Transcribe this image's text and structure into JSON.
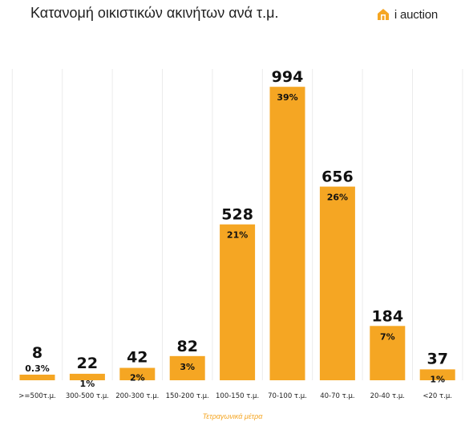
{
  "header": {
    "title": "Κατανομή οικιστικών ακινήτων ανά τ.μ."
  },
  "brand": {
    "name": "i auction",
    "icon": "house-logo-icon",
    "color": "#f5a623"
  },
  "chart_data": {
    "type": "bar",
    "title": "Κατανομή οικιστικών ακινήτων ανά τ.μ.",
    "xlabel": "Τετραγωνικά μέτρα",
    "ylabel": "",
    "categories": [
      ">=500τ.μ.",
      "300-500 τ.μ.",
      "200-300 τ.μ.",
      "150-200 τ.μ.",
      "100-150 τ.μ.",
      "70-100 τ.μ.",
      "40-70 τ.μ.",
      "20-40 τ.μ.",
      "<20 τ.μ."
    ],
    "values": [
      8,
      22,
      42,
      82,
      528,
      994,
      656,
      184,
      37
    ],
    "percent_labels": [
      "0.3%",
      "1%",
      "2%",
      "3%",
      "21%",
      "39%",
      "26%",
      "7%",
      "1%"
    ],
    "ylim": [
      0,
      1000
    ],
    "grid": "vertical",
    "bar_color": "#f5a623"
  }
}
